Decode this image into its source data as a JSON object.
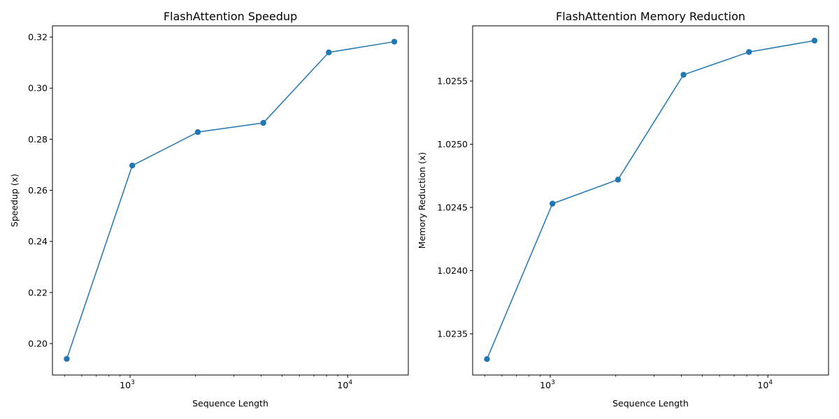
{
  "figure": {
    "colors": {
      "line": "#1f77b4",
      "axes": "#000000",
      "background": "#ffffff"
    }
  },
  "chart_data": [
    {
      "type": "line",
      "title": "FlashAttention Speedup",
      "xlabel": "Sequence Length",
      "ylabel": "Speedup (x)",
      "xscale": "log",
      "grid": false,
      "marker": "circle",
      "x": [
        512,
        1024,
        2048,
        4096,
        8192,
        16384
      ],
      "series": [
        {
          "values": [
            0.194,
            0.2697,
            0.2828,
            0.2864,
            0.314,
            0.3182
          ]
        }
      ],
      "xlim": [
        440,
        19000
      ],
      "ylim": [
        0.1877,
        0.3244
      ],
      "xticks": [
        {
          "value": 1000,
          "base": "10",
          "exp": "3"
        },
        {
          "value": 10000,
          "base": "10",
          "exp": "4"
        }
      ],
      "yticks": [
        {
          "value": 0.2,
          "label": "0.20"
        },
        {
          "value": 0.22,
          "label": "0.22"
        },
        {
          "value": 0.24,
          "label": "0.24"
        },
        {
          "value": 0.26,
          "label": "0.26"
        },
        {
          "value": 0.28,
          "label": "0.28"
        },
        {
          "value": 0.3,
          "label": "0.30"
        },
        {
          "value": 0.32,
          "label": "0.32"
        }
      ]
    },
    {
      "type": "line",
      "title": "FlashAttention Memory Reduction",
      "xlabel": "Sequence Length",
      "ylabel": "Memory Reduction (x)",
      "xscale": "log",
      "grid": false,
      "marker": "circle",
      "x": [
        512,
        1024,
        2048,
        4096,
        8192,
        16384
      ],
      "series": [
        {
          "values": [
            1.0233,
            1.02453,
            1.02472,
            1.02555,
            1.02573,
            1.02582
          ]
        }
      ],
      "xlim": [
        440,
        19000
      ],
      "ylim": [
        1.023174,
        1.025937
      ],
      "xticks": [
        {
          "value": 1000,
          "base": "10",
          "exp": "3"
        },
        {
          "value": 10000,
          "base": "10",
          "exp": "4"
        }
      ],
      "yticks": [
        {
          "value": 1.0235,
          "label": "1.0235"
        },
        {
          "value": 1.024,
          "label": "1.0240"
        },
        {
          "value": 1.0245,
          "label": "1.0245"
        },
        {
          "value": 1.025,
          "label": "1.0250"
        },
        {
          "value": 1.0255,
          "label": "1.0255"
        }
      ]
    }
  ]
}
